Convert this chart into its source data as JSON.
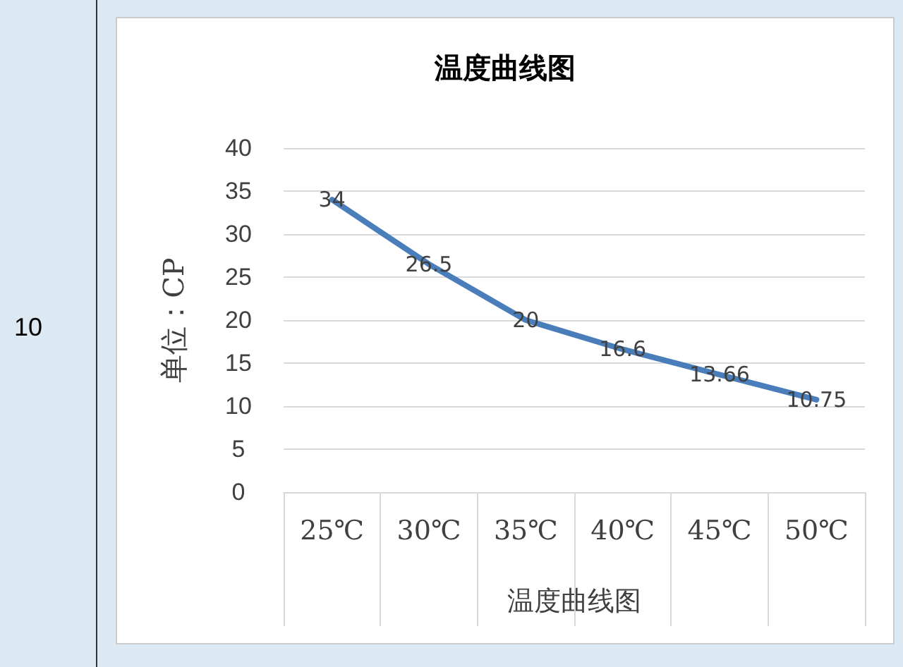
{
  "chart_data": {
    "type": "line",
    "title": "温度曲线图",
    "xlabel": "温度曲线图",
    "ylabel": "单位：CP",
    "annotations": [
      "10"
    ],
    "categories": [
      "25℃",
      "30℃",
      "35℃",
      "40℃",
      "45℃",
      "50℃"
    ],
    "series": [
      {
        "color": "#4a7ebb",
        "values": [
          34,
          26.5,
          20,
          16.6,
          13.66,
          10.75
        ]
      }
    ],
    "ylim": [
      0,
      40
    ],
    "yticks": [
      0,
      5,
      10,
      15,
      20,
      25,
      30,
      35,
      40
    ],
    "grid": "y",
    "data_labels": true,
    "marker": "none",
    "line_style": "solid"
  }
}
